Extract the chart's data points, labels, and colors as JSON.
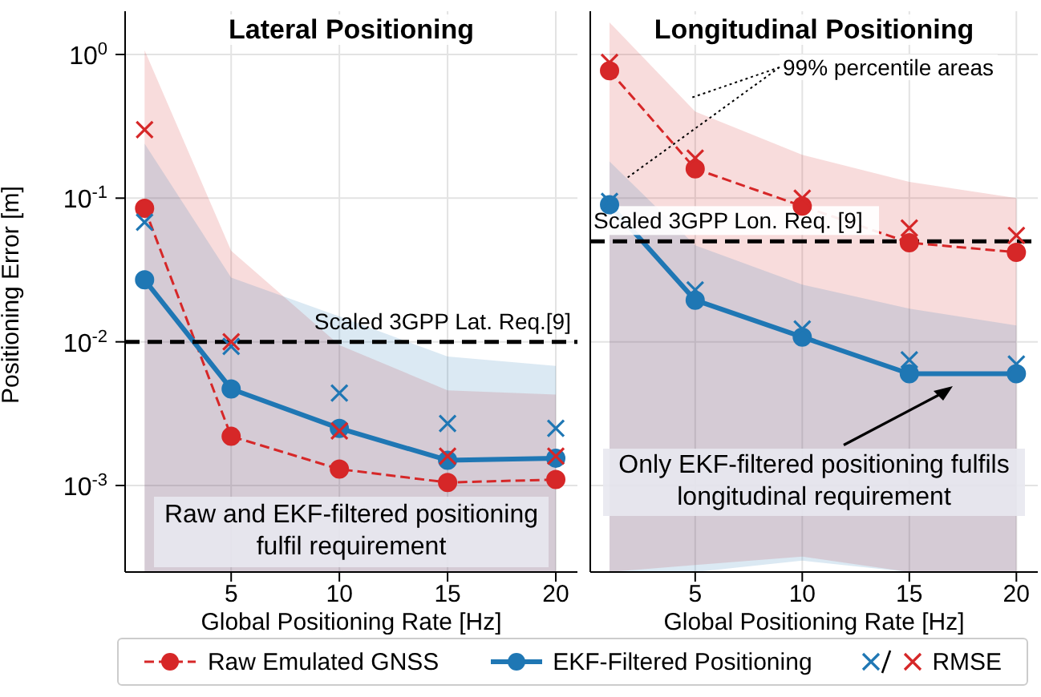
{
  "chart_data": [
    {
      "type": "line",
      "title": "Lateral Positioning",
      "xlabel": "Global Positioning Rate [Hz]",
      "ylabel": "Positioning Error [m]",
      "x": [
        1,
        5,
        10,
        15,
        20
      ],
      "xlim": [
        0.1,
        21
      ],
      "xticks": [
        5,
        10,
        15,
        20
      ],
      "ylim": [
        0.00025,
        2
      ],
      "yticks": [
        {
          "value": 1,
          "label": "10$^{0}$"
        },
        {
          "value": 0.1,
          "label": "10$^{-1}$"
        },
        {
          "value": 0.01,
          "label": "10$^{-2}$"
        },
        {
          "value": 0.001,
          "label": "10$^{-3}$"
        }
      ],
      "log": "y",
      "grid": true,
      "legend": "bottom",
      "series": [
        {
          "name": "Raw Emulated GNSS",
          "color": "#d62728",
          "line_style": "dashed",
          "marker": "circle",
          "values": [
            0.085,
            0.0022,
            0.0013,
            0.00105,
            0.0011
          ],
          "lower": [
            0.00025,
            0.00025,
            0.00025,
            0.00025,
            0.00025
          ],
          "upper": [
            1.07,
            0.043,
            0.0095,
            0.0046,
            0.0043
          ]
        },
        {
          "name": "EKF-Filtered Positioning",
          "color": "#1f77b4",
          "line_style": "solid",
          "marker": "circle",
          "values": [
            0.027,
            0.0047,
            0.0025,
            0.0015,
            0.00155
          ],
          "lower": [
            0.00025,
            0.00025,
            0.00025,
            0.00025,
            0.00025
          ],
          "upper": [
            0.24,
            0.028,
            0.015,
            0.0079,
            0.0068
          ]
        },
        {
          "type": "scatter",
          "color": "#1f77b4",
          "marker": "cross",
          "values": [
            0.068,
            0.0093,
            0.0044,
            0.0027,
            0.0025
          ]
        },
        {
          "name": "RMSE",
          "type": "scatter",
          "color": "#d62728",
          "marker": "cross",
          "values": [
            0.3,
            0.01,
            0.0024,
            0.0016,
            0.0016
          ]
        }
      ],
      "ref_lines": [
        {
          "axis": "y",
          "value": 0.01,
          "label": "Scaled 3GPP Lat. Req.[9]",
          "color": "#000000",
          "line_style": "dashed"
        }
      ],
      "annotations": [
        "Raw and EKF-filtered positioning fulfil requirement"
      ]
    },
    {
      "type": "line",
      "title": "Longitudinal Positioning",
      "xlabel": "Global Positioning Rate [Hz]",
      "x": [
        1,
        5,
        10,
        15,
        20
      ],
      "xlim": [
        0.1,
        21
      ],
      "xticks": [
        5,
        10,
        15,
        20
      ],
      "ylim": [
        0.00025,
        2
      ],
      "yticks": [
        1,
        0.1,
        0.01,
        0.001
      ],
      "log": "y",
      "grid": true,
      "tick_labels": "x",
      "series": [
        {
          "name": "Raw Emulated GNSS",
          "color": "#d62728",
          "line_style": "dashed",
          "marker": "circle",
          "values": [
            0.77,
            0.16,
            0.088,
            0.049,
            0.042
          ],
          "lower": [
            0.00025,
            0.00028,
            0.00032,
            0.00025,
            0.00025
          ],
          "upper": [
            1.67,
            0.4,
            0.2,
            0.13,
            0.1
          ]
        },
        {
          "name": "EKF-Filtered Positioning",
          "color": "#1f77b4",
          "line_style": "solid",
          "marker": "circle",
          "values": [
            0.09,
            0.0195,
            0.0108,
            0.006,
            0.006
          ],
          "lower": [
            0.00025,
            0.00025,
            0.0003,
            0.00025,
            0.00025
          ],
          "upper": [
            0.18,
            0.047,
            0.025,
            0.017,
            0.013
          ]
        },
        {
          "type": "scatter",
          "color": "#1f77b4",
          "marker": "cross",
          "values": [
            0.095,
            0.023,
            0.0123,
            0.0075,
            0.007
          ]
        },
        {
          "name": "RMSE",
          "type": "scatter",
          "color": "#d62728",
          "marker": "cross",
          "values": [
            0.88,
            0.19,
            0.1,
            0.062,
            0.055
          ]
        }
      ],
      "ref_lines": [
        {
          "axis": "y",
          "value": 0.05,
          "label": "Scaled 3GPP Lon. Req. [9]",
          "color": "#000000",
          "line_style": "dashed"
        }
      ],
      "annotations": [
        "99% percentile areas",
        "Only EKF-filtered positioning fulfils longitudinal requirement"
      ]
    }
  ]
}
